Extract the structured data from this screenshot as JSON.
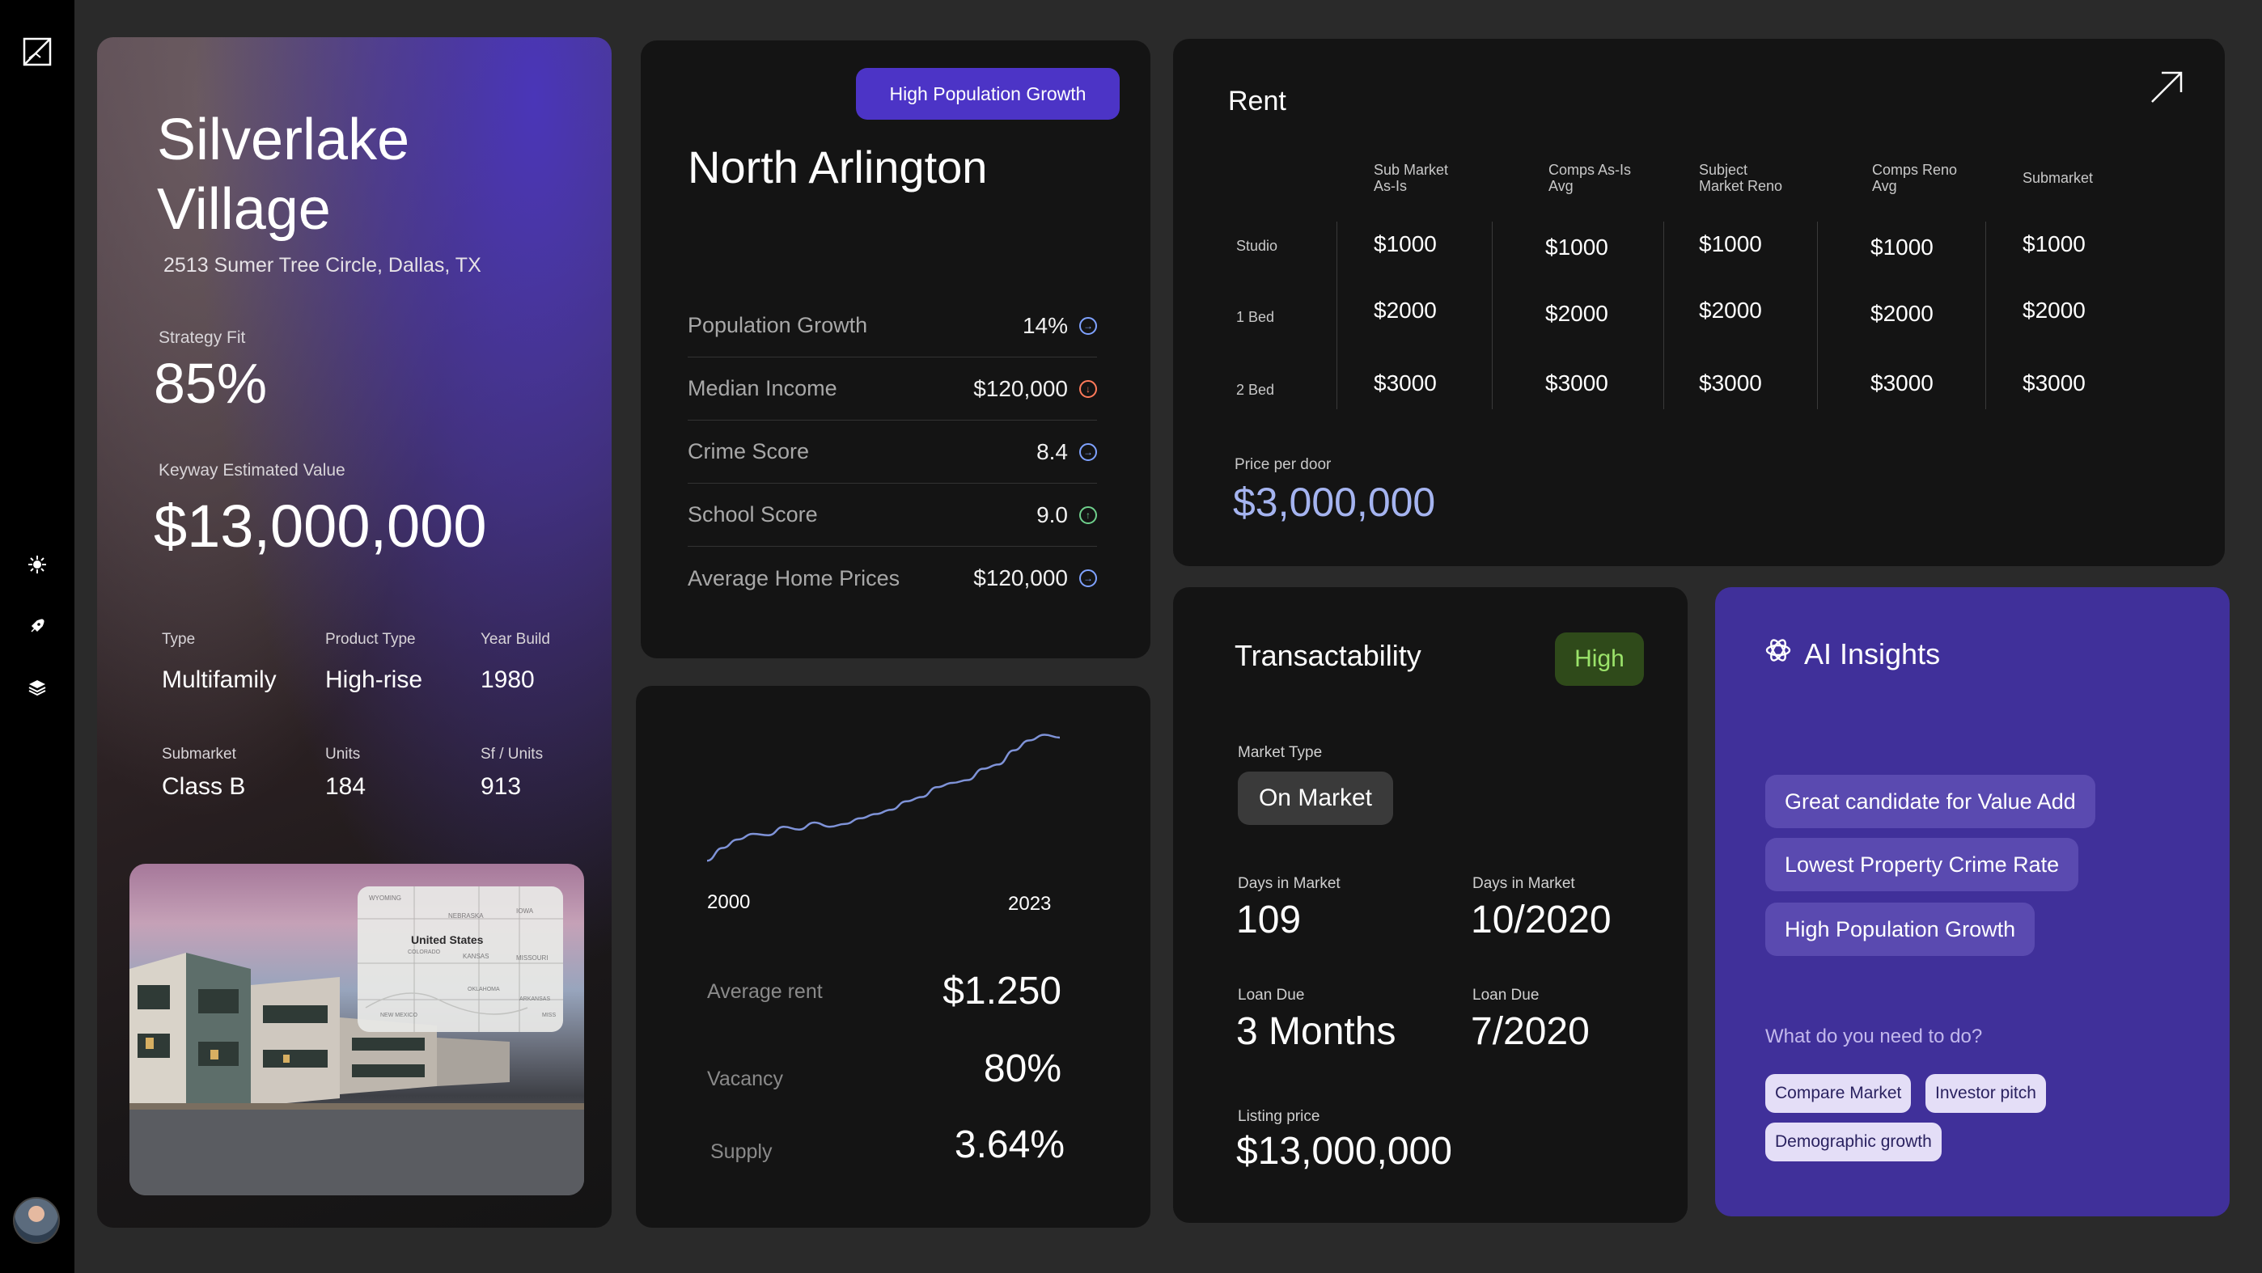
{
  "sidebar": {
    "icons": [
      "image-icon",
      "sparkle-icon",
      "rocket-icon",
      "layers-icon"
    ]
  },
  "property": {
    "title": "Silverlake Village",
    "address": "2513 Sumer Tree Circle, Dallas, TX",
    "strategy_fit_label": "Strategy Fit",
    "strategy_fit_value": "85%",
    "estimated_value_label": "Keyway Estimated Value",
    "estimated_value": "$13,000,000",
    "details": [
      {
        "label": "Type",
        "value": "Multifamily"
      },
      {
        "label": "Product Type",
        "value": "High-rise"
      },
      {
        "label": "Year Build",
        "value": "1980"
      },
      {
        "label": "Submarket",
        "value": "Class B"
      },
      {
        "label": "Units",
        "value": "184"
      },
      {
        "label": "Sf / Units",
        "value": "913"
      }
    ],
    "map": {
      "country": "United States",
      "states": [
        "WYOMING",
        "NEBRASKA",
        "IOWA",
        "COLORADO",
        "KANSAS",
        "MISSOURI",
        "OKLAHOMA",
        "ARKANSAS",
        "NEW MEXICO",
        "MISS"
      ]
    }
  },
  "area": {
    "badge": "High Population Growth",
    "title": "North Arlington",
    "metrics": [
      {
        "label": "Population Growth",
        "value": "14%",
        "icon": "arrow-right-circle-icon",
        "color": "#7fa2ff"
      },
      {
        "label": "Median Income",
        "value": "$120,000",
        "icon": "arrow-down-circle-icon",
        "color": "#ff7a5a"
      },
      {
        "label": "Crime Score",
        "value": "8.4",
        "icon": "arrow-right-circle-icon",
        "color": "#7fa2ff"
      },
      {
        "label": "School Score",
        "value": "9.0",
        "icon": "arrow-up-circle-icon",
        "color": "#6fd08c"
      },
      {
        "label": "Average Home Prices",
        "value": "$120,000",
        "icon": "arrow-right-circle-icon",
        "color": "#7fa2ff"
      }
    ]
  },
  "trend": {
    "x_start": "2000",
    "x_end": "2023",
    "stats": [
      {
        "label": "Average rent",
        "value": "$1.250"
      },
      {
        "label": "Vacancy",
        "value": "80%"
      },
      {
        "label": "Supply",
        "value": "3.64%"
      }
    ]
  },
  "chart_data": {
    "type": "line",
    "x": [
      2000,
      2001,
      2002,
      2003,
      2004,
      2005,
      2006,
      2007,
      2008,
      2009,
      2010,
      2011,
      2012,
      2013,
      2014,
      2015,
      2016,
      2017,
      2018,
      2019,
      2020,
      2021,
      2022,
      2023
    ],
    "series": [
      {
        "values": [
          5,
          14,
          20,
          24,
          23,
          29,
          27,
          32,
          29,
          31,
          35,
          38,
          41,
          47,
          50,
          57,
          60,
          62,
          70,
          73,
          83,
          90,
          94,
          92
        ]
      }
    ],
    "xlabel": "",
    "ylabel": "",
    "grid": false,
    "line_color": "#7f93d8"
  },
  "rent": {
    "title": "Rent",
    "columns": [
      "Sub Market As-Is",
      "Comps As-Is Avg",
      "Subject Market Reno",
      "Comps Reno Avg",
      "Submarket"
    ],
    "rows": [
      {
        "label": "Studio",
        "values": [
          "$1000",
          "$1000",
          "$1000",
          "$1000",
          "$1000"
        ]
      },
      {
        "label": "1 Bed",
        "values": [
          "$2000",
          "$2000",
          "$2000",
          "$2000",
          "$2000"
        ]
      },
      {
        "label": "2 Bed",
        "values": [
          "$3000",
          "$3000",
          "$3000",
          "$3000",
          "$3000"
        ]
      }
    ],
    "price_per_door_label": "Price per door",
    "price_per_door": "$3,000,000",
    "accent": "#a5b4f0"
  },
  "transactability": {
    "title": "Transactability",
    "badge": "High",
    "market_type_label": "Market Type",
    "market_type": "On Market",
    "days_label_1": "Days in Market",
    "days_value_1": "109",
    "days_label_2": "Days in Market",
    "days_value_2": "10/2020",
    "loan_label_1": "Loan Due",
    "loan_value_1": "3 Months",
    "loan_label_2": "Loan Due",
    "loan_value_2": "7/2020",
    "listing_label": "Listing price",
    "listing_value": "$13,000,000"
  },
  "ai": {
    "title": "AI Insights",
    "insights": [
      "Great candidate for Value Add",
      "Lowest Property Crime Rate",
      "High Population Growth"
    ],
    "question": "What do you need to do?",
    "chips": [
      "Compare Market",
      "Investor pitch",
      "Demographic growth"
    ]
  }
}
